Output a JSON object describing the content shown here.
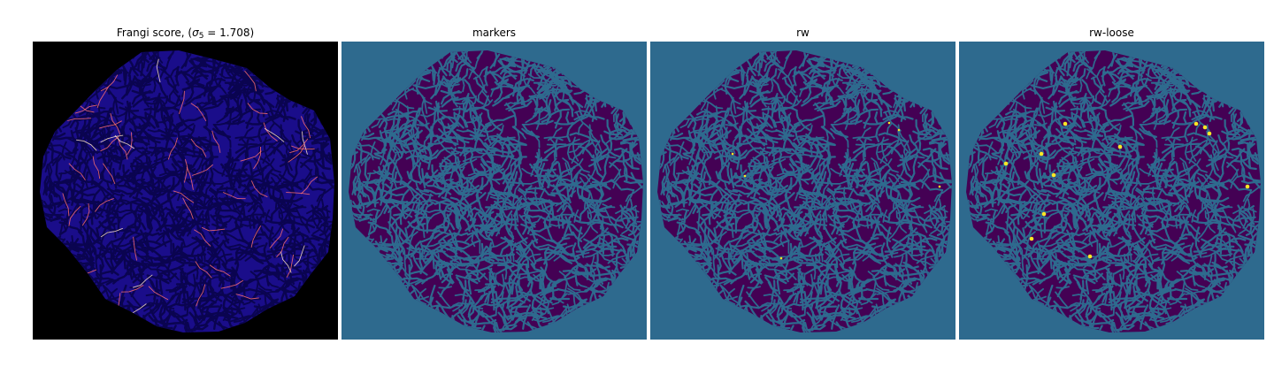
{
  "colors": {
    "frangi_background": "#000000",
    "frangi_tissue": "#1a0d8a",
    "frangi_tissue_dark": "#0a0450",
    "frangi_highlight": "#ff6f6f",
    "frangi_highlight_bright": "#ffe3c8",
    "segmentation_background": "#2e6a8e",
    "segmentation_tissue": "#440154",
    "segmentation_highlight": "#fde725",
    "page_background": "#ffffff"
  },
  "panels": [
    {
      "id": "frangi",
      "title_prefix": "Frangi score, (",
      "title_math": "σ",
      "title_sub": "5",
      "title_suffix": " = 1.708)"
    },
    {
      "id": "markers",
      "title": "markers"
    },
    {
      "id": "rw",
      "title": "rw"
    },
    {
      "id": "rw-loose",
      "title": "rw-loose"
    }
  ]
}
